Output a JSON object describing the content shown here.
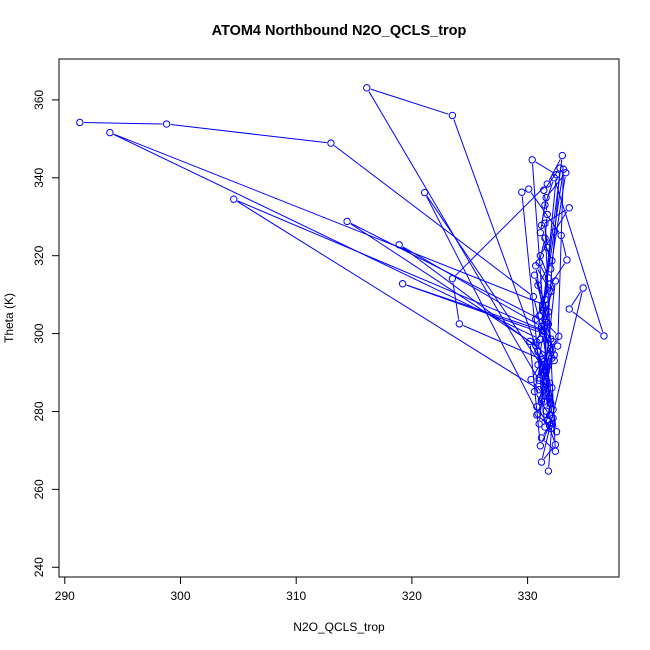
{
  "chart_data": {
    "type": "line",
    "title": "ATOM4 Northbound N2O_QCLS_trop",
    "xlabel": "N2O_QCLS_trop",
    "ylabel": "Theta (K)",
    "xlim": [
      289.5,
      337.9
    ],
    "ylim": [
      237.5,
      370.5
    ],
    "xticks": [
      290,
      300,
      310,
      320,
      330
    ],
    "yticks": [
      240,
      260,
      280,
      300,
      320,
      340,
      360
    ],
    "grid": false,
    "legend": "none",
    "color": "#0000ff",
    "series": [
      {
        "x": [
          291.3,
          298.8,
          313.0,
          330.5,
          331.2,
          330.8,
          331.6,
          331.0,
          316.1,
          323.5,
          330.9,
          331.4,
          331.9,
          330.4,
          332.5,
          331.1,
          293.9,
          331.6,
          330.6,
          331.8,
          332.3,
          331.0,
          304.6,
          331.4,
          332.1,
          331.2,
          330.9,
          321.1,
          331.5,
          332.6,
          333.1,
          331.3,
          330.7,
          332.0,
          331.6,
          314.4,
          330.7,
          331.4,
          332.2,
          331.0,
          332.4,
          331.2,
          318.9,
          331.8,
          331.5,
          330.8,
          332.0,
          331.3,
          333.0,
          331.7,
          323.5,
          324.1,
          331.2,
          330.6,
          331.9,
          332.5,
          331.3,
          319.2,
          331.4,
          330.9,
          331.8,
          332.2,
          331.1,
          330.2,
          331.6,
          332.0,
          331.5,
          329.5,
          330.1,
          332.9,
          333.4,
          331.8,
          331.0,
          332.7,
          331.4,
          330.3,
          332.0,
          331.7,
          332.4,
          331.2,
          334.8,
          333.6,
          336.6,
          332.3,
          331.5,
          331.1,
          332.1,
          330.9,
          331.8,
          331.3,
          332.0,
          331.6,
          331.9,
          331.2,
          332.8,
          331.4,
          331.7,
          331.5,
          331.0,
          331.9,
          331.3,
          331.6,
          332.0,
          332.3,
          331.6,
          332.1,
          331.4,
          330.8,
          331.9,
          331.2,
          332.4,
          331.5,
          331.7,
          332.0,
          333.3,
          331.6,
          331.2,
          333.6,
          332.3,
          331.1,
          331.8,
          331.5,
          330.7,
          332.2,
          331.4,
          331.0,
          331.9,
          331.6,
          332.1,
          331.8
        ],
        "y": [
          354.2,
          353.8,
          348.9,
          309.5,
          301.2,
          297.8,
          292.4,
          288.0,
          363.1,
          356.0,
          295.3,
          286.2,
          283.4,
          344.6,
          340.8,
          298.5,
          351.6,
          307.2,
          315.0,
          302.4,
          293.1,
          285.6,
          334.5,
          300.8,
          293.7,
          282.6,
          279.4,
          336.2,
          290.5,
          296.8,
          342.2,
          306.1,
          317.4,
          310.8,
          302.9,
          328.8,
          297.0,
          289.9,
          280.5,
          276.8,
          313.5,
          301.8,
          322.8,
          294.3,
          287.7,
          281.2,
          275.6,
          306.7,
          345.7,
          338.4,
          314.1,
          302.5,
          293.4,
          285.1,
          279.0,
          274.8,
          300.1,
          312.8,
          300.6,
          292.0,
          284.5,
          278.3,
          271.2,
          298.0,
          290.7,
          282.2,
          276.0,
          336.3,
          337.1,
          325.2,
          318.9,
          311.7,
          304.5,
          299.3,
          293.6,
          288.2,
          282.0,
          277.7,
          271.5,
          267.0,
          311.7,
          306.3,
          299.4,
          340.0,
          333.0,
          325.9,
          318.7,
          312.4,
          305.6,
          300.9,
          296.2,
          291.6,
          287.3,
          283.1,
          342.5,
          336.8,
          330.6,
          324.5,
          318.2,
          312.7,
          307.4,
          303.0,
          298.6,
          294.5,
          290.2,
          286.1,
          282.5,
          279.1,
          276.4,
          273.2,
          269.8,
          328.3,
          322.1,
          316.6,
          341.3,
          334.9,
          327.8,
          332.3,
          326.1,
          320.0,
          314.3,
          308.8,
          303.7,
          297.9,
          292.8,
          288.6,
          284.0,
          280.1,
          276.9,
          264.7
        ]
      }
    ]
  }
}
